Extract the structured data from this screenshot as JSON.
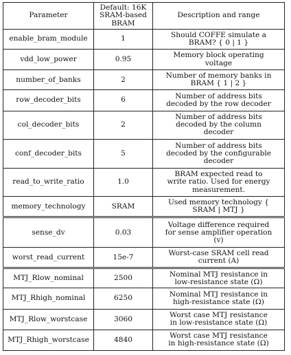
{
  "table": {
    "headers": {
      "parameter": "Parameter",
      "default": "Default: 16K\nSRAM-based\nBRAM",
      "description": "Description and range"
    },
    "rows": [
      {
        "parameter": "enable_bram_module",
        "default": "1",
        "description": "Should COFFE simulate a\nBRAM? { 0 | 1 }"
      },
      {
        "parameter": "vdd_low_power",
        "default": "0.95",
        "description": "Memory block operating\nvoltage"
      },
      {
        "parameter": "number_of_banks",
        "default": "2",
        "description": "Number of memory banks in\nBRAM { 1 | 2 }"
      },
      {
        "parameter": "row_decoder_bits",
        "default": "6",
        "description": "Number of address bits\ndecoded by the row decoder"
      },
      {
        "parameter": "col_decoder_bits",
        "default": "2",
        "description": "Number of address bits\ndecoded by the column\ndecoder"
      },
      {
        "parameter": "conf_decoder_bits",
        "default": "5",
        "description": "Number of address bits\ndecoded by the configurable\ndecoder"
      },
      {
        "parameter": "read_to_write_ratio",
        "default": "1.0",
        "description": "BRAM expected read to\nwrite ratio. Used for energy\nmeasurement."
      },
      {
        "parameter": "memory_technology",
        "default": "SRAM",
        "description": "Used memory technology {\nSRAM | MTJ }"
      },
      {
        "parameter": "sense_dv",
        "default": "0.03",
        "description": "Voltage difference required\nfor sense amplifier operation\n(v)"
      },
      {
        "parameter": "worst_read_current",
        "default": "15e-7",
        "description": "Worst-case SRAM cell read\ncurrent (A)"
      },
      {
        "parameter": "MTJ_Rlow_nominal",
        "default": "2500",
        "description": "Nominal MTJ resistance in\nlow-resistance state (Ω)"
      },
      {
        "parameter": "MTJ_Rhigh_nominal",
        "default": "6250",
        "description": "Nominal MTJ resistance in\nhigh-resistance state (Ω)"
      },
      {
        "parameter": "MTJ_Rlow_worstcase",
        "default": "3060",
        "description": "Worst case MTJ resistance\nin low-resistance state (Ω)"
      },
      {
        "parameter": "MTJ_Rhigh_worstcase",
        "default": "4840",
        "description": "Worst case MTJ resistance\nin high-resistance state (Ω)"
      }
    ]
  }
}
